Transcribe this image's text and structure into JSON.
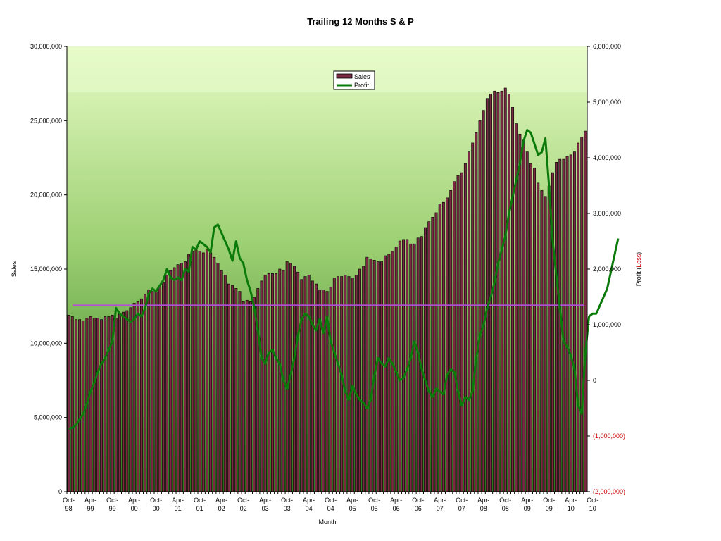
{
  "chart_data": {
    "type": "bar+line",
    "title": "Trailing 12 Months S & P",
    "xlabel": "Month",
    "ylabel": "Sales",
    "y2label_parts": [
      "Profit (",
      "Loss",
      ")"
    ],
    "ylim": [
      0,
      30000000
    ],
    "y2lim": [
      -2000000,
      6000000
    ],
    "y_ticks": [
      "0",
      "5,000,000",
      "10,000,000",
      "15,000,000",
      "20,000,000",
      "25,000,000",
      "30,000,000"
    ],
    "y2_ticks": [
      "(2,000,000)",
      "(1,000,000)",
      "0",
      "1,000,000",
      "2,000,000",
      "3,000,000",
      "4,000,000",
      "5,000,000",
      "6,000,000"
    ],
    "x_labels": [
      [
        "Oct-",
        "98"
      ],
      [
        "Apr-",
        "99"
      ],
      [
        "Oct-",
        "99"
      ],
      [
        "Apr-",
        "00"
      ],
      [
        "Oct-",
        "00"
      ],
      [
        "Apr-",
        "01"
      ],
      [
        "Oct-",
        "01"
      ],
      [
        "Apr-",
        "02"
      ],
      [
        "Oct-",
        "02"
      ],
      [
        "Apr-",
        "03"
      ],
      [
        "Oct-",
        "03"
      ],
      [
        "Apr-",
        "04"
      ],
      [
        "Oct-",
        "04"
      ],
      [
        "Apr-",
        "05"
      ],
      [
        "Oct-",
        "05"
      ],
      [
        "Apr-",
        "06"
      ],
      [
        "Oct-",
        "06"
      ],
      [
        "Apr-",
        "07"
      ],
      [
        "Oct-",
        "07"
      ],
      [
        "Apr-",
        "08"
      ],
      [
        "Oct-",
        "08"
      ],
      [
        "Apr-",
        "09"
      ],
      [
        "Oct-",
        "09"
      ],
      [
        "Apr-",
        "10"
      ],
      [
        "Oct-",
        "10"
      ]
    ],
    "legend": {
      "placement": "top-center",
      "items": [
        "Sales",
        "Profit"
      ]
    },
    "colors": {
      "bar_fill": "#7a2a42",
      "bar_edge": "#000000",
      "profit_line": "#0a7a0a",
      "reference_line": "#b44fd8",
      "negative_label": "#cc0000",
      "bg_top": "#e6fbc4",
      "bg_bottom": "#2b7a1c"
    },
    "reference_line_value": 1350000,
    "series": [
      {
        "name": "Sales",
        "axis": "primary",
        "values": [
          11900000,
          11800000,
          11600000,
          11600000,
          11500000,
          11700000,
          11800000,
          11700000,
          11700000,
          11600000,
          11800000,
          11800000,
          11900000,
          11700000,
          12000000,
          12100000,
          12200000,
          12400000,
          12700000,
          12800000,
          13000000,
          13300000,
          13600000,
          13500000,
          13500000,
          13800000,
          14100000,
          14600000,
          14900000,
          15100000,
          15300000,
          15400000,
          15500000,
          16000000,
          16200000,
          16300000,
          16200000,
          16100000,
          16300000,
          16100000,
          15800000,
          15400000,
          14900000,
          14600000,
          14000000,
          13900000,
          13700000,
          13500000,
          12800000,
          12900000,
          12800000,
          13100000,
          13700000,
          14200000,
          14600000,
          14700000,
          14700000,
          14700000,
          15000000,
          14900000,
          15500000,
          15400000,
          15200000,
          14800000,
          14300000,
          14500000,
          14600000,
          14200000,
          14000000,
          13600000,
          13600000,
          13500000,
          13800000,
          14400000,
          14500000,
          14500000,
          14600000,
          14500000,
          14400000,
          14600000,
          15000000,
          15200000,
          15800000,
          15700000,
          15600000,
          15500000,
          15500000,
          15900000,
          16000000,
          16200000,
          16500000,
          16900000,
          17000000,
          17000000,
          16700000,
          16700000,
          17100000,
          17200000,
          17800000,
          18200000,
          18500000,
          18800000,
          19400000,
          19500000,
          19800000,
          20300000,
          20900000,
          21300000,
          21500000,
          22100000,
          22900000,
          23500000,
          24200000,
          25000000,
          25700000,
          26500000,
          26800000,
          27000000,
          26900000,
          27000000,
          27200000,
          26800000,
          25900000,
          24800000,
          24100000,
          23700000,
          22900000,
          22100000,
          21800000,
          20800000,
          20300000,
          19900000,
          20600000,
          21500000,
          22200000,
          22400000,
          22400000,
          22600000,
          22700000,
          22900000,
          23500000,
          23900000,
          24300000
        ]
      },
      {
        "name": "Profit",
        "axis": "secondary",
        "values": [
          -870000,
          -850000,
          -800000,
          -700000,
          -600000,
          -420000,
          -200000,
          -40000,
          150000,
          300000,
          400000,
          550000,
          700000,
          1300000,
          1200000,
          1150000,
          1100000,
          1050000,
          1100000,
          1200000,
          1150000,
          1300000,
          1550000,
          1650000,
          1600000,
          1700000,
          1800000,
          2000000,
          1850000,
          1800000,
          1850000,
          1800000,
          2000000,
          1950000,
          2400000,
          2350000,
          2500000,
          2450000,
          2400000,
          2300000,
          2750000,
          2800000,
          2650000,
          2500000,
          2350000,
          2150000,
          2500000,
          2200000,
          2100000,
          1800000,
          1600000,
          1300000,
          900000,
          400000,
          300000,
          500000,
          550000,
          400000,
          300000,
          0,
          -150000,
          100000,
          400000,
          800000,
          1100000,
          1200000,
          1150000,
          1000000,
          900000,
          1100000,
          850000,
          1150000,
          700000,
          500000,
          300000,
          100000,
          -200000,
          -350000,
          -100000,
          -250000,
          -350000,
          -400000,
          -500000,
          -350000,
          100000,
          400000,
          300000,
          250000,
          400000,
          300000,
          150000,
          0,
          50000,
          200000,
          400000,
          700000,
          500000,
          200000,
          0,
          -200000,
          -300000,
          -150000,
          -200000,
          -250000,
          100000,
          200000,
          150000,
          -200000,
          -450000,
          -300000,
          -350000,
          -200000,
          400000,
          800000,
          1000000,
          1300000,
          1500000,
          1750000,
          2100000,
          2350000,
          2600000,
          3000000,
          3300000,
          3600000,
          3900000,
          4300000,
          4500000,
          4450000,
          4250000,
          4050000,
          4100000,
          4350000,
          3500000,
          2500000,
          1900000,
          1300000,
          700000,
          600000,
          450000,
          200000,
          -450000,
          -600000,
          500000,
          1150000,
          1200000,
          1200000,
          1350000,
          1500000,
          1650000,
          1950000,
          2250000,
          2550000
        ]
      }
    ]
  }
}
